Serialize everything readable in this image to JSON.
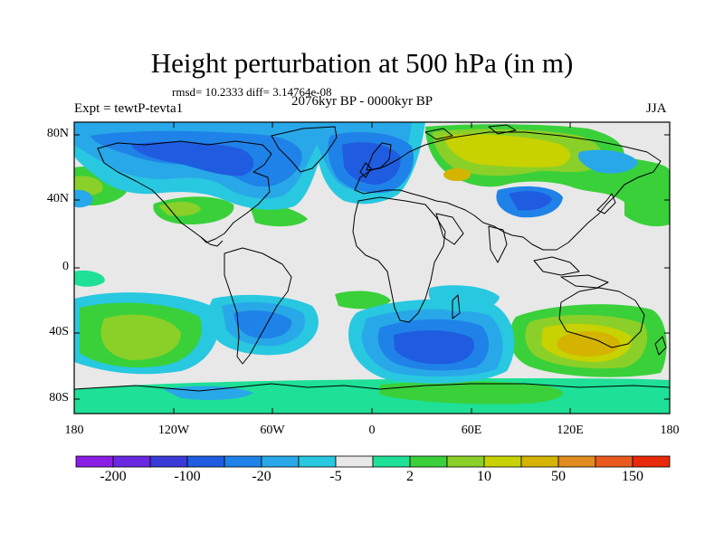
{
  "figure": {
    "title": "Height perturbation at 500 hPa (in m)",
    "stats": "rmsd= 10.2333 diff= 3.14764e-08",
    "left_label": "Expt = tewtP-tevta1",
    "center_label": "2076kyr BP - 0000kyr BP",
    "right_label": "JJA"
  },
  "axes": {
    "lat_labels": [
      "80N",
      "40N",
      "0",
      "40S",
      "80S"
    ],
    "lon_labels": [
      "180",
      "120W",
      "60W",
      "0",
      "60E",
      "120E",
      "180"
    ]
  },
  "colorbar": {
    "colors": [
      "#8a1ee6",
      "#6a28e0",
      "#3a3ad8",
      "#1f5ce0",
      "#1f82e8",
      "#28a8e8",
      "#28c8e0",
      "#e8e8e8",
      "#1ee096",
      "#3ad03a",
      "#8ad028",
      "#c8d200",
      "#d4b400",
      "#e08c1e",
      "#ea5a1e",
      "#e82a0a"
    ],
    "labels": [
      "-200",
      "-100",
      "-20",
      "-5",
      "2",
      "10",
      "50",
      "150"
    ]
  },
  "map_data": {
    "projection": "cylindrical-equidistant",
    "lon_range": [
      -180,
      180
    ],
    "lat_range": [
      -90,
      90
    ],
    "background_color": "#e8e8e8"
  }
}
